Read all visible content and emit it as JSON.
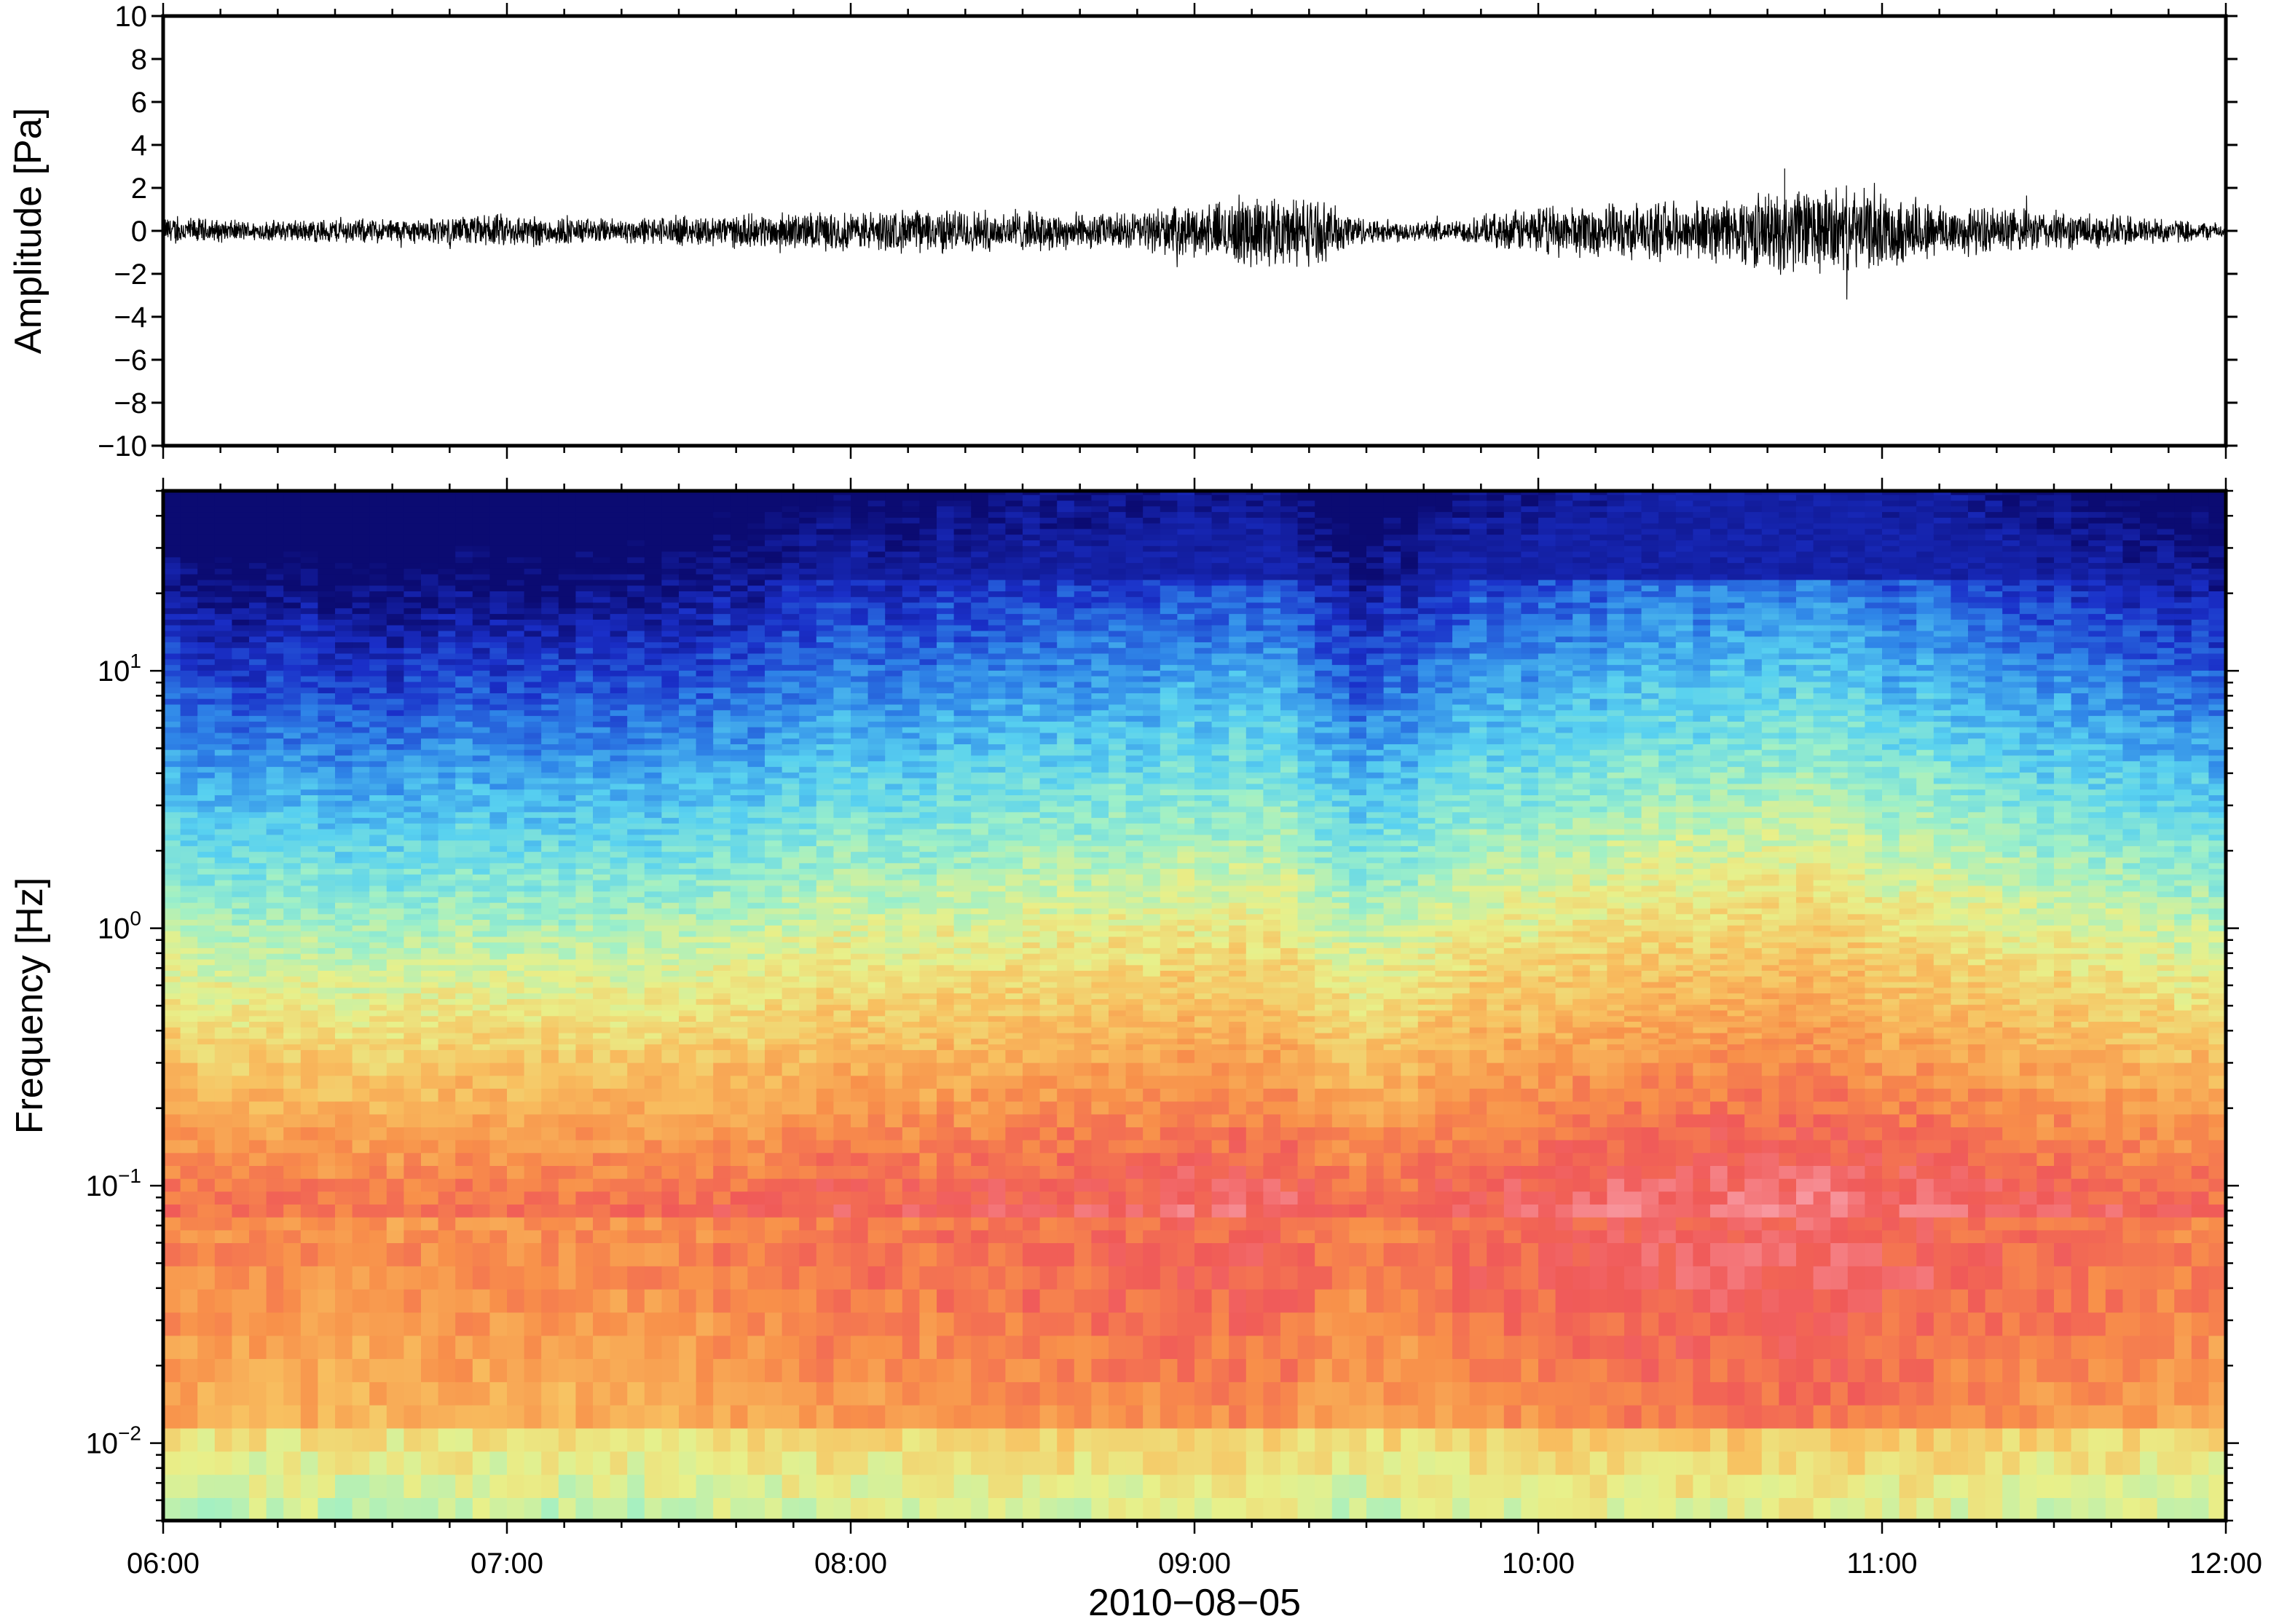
{
  "chart_data": [
    {
      "type": "line",
      "panel": "waveform",
      "ylabel": "Amplitude [Pa]",
      "ylim": [
        -10,
        10
      ],
      "yticks": [
        -10,
        -8,
        -6,
        -4,
        -2,
        0,
        2,
        4,
        6,
        8,
        10
      ],
      "ytick_labels": [
        "−10",
        "−8",
        "−6",
        "−4",
        "−2",
        "0",
        "2",
        "4",
        "6",
        "8",
        "10"
      ],
      "xlim": [
        "06:00",
        "12:00"
      ],
      "envelope": {
        "time": [
          "06:00",
          "06:15",
          "06:30",
          "06:45",
          "07:00",
          "07:15",
          "07:30",
          "07:45",
          "08:00",
          "08:15",
          "08:30",
          "08:45",
          "09:00",
          "09:10",
          "09:20",
          "09:30",
          "09:45",
          "10:00",
          "10:15",
          "10:30",
          "10:40",
          "10:50",
          "11:00",
          "11:15",
          "11:30",
          "11:45",
          "12:00"
        ],
        "amplitude": [
          0.6,
          0.4,
          0.5,
          0.5,
          0.7,
          0.5,
          0.6,
          0.7,
          0.8,
          0.9,
          0.8,
          0.7,
          1.0,
          1.5,
          1.4,
          0.5,
          0.4,
          1.0,
          1.1,
          1.2,
          1.6,
          1.8,
          1.5,
          1.0,
          0.8,
          0.6,
          0.3
        ]
      },
      "peak": {
        "time": "10:43",
        "amplitude": 2.9
      }
    },
    {
      "type": "heatmap",
      "panel": "spectrogram",
      "ylabel": "Frequency [Hz]",
      "xlabel": "2010−08−05",
      "yscale": "log",
      "ylim": [
        0.005,
        50
      ],
      "yticks": [
        0.01,
        0.1,
        1,
        10
      ],
      "ytick_labels": [
        {
          "base": "10",
          "exp": "−2"
        },
        {
          "base": "10",
          "exp": "−1"
        },
        {
          "base": "10",
          "exp": "0"
        },
        {
          "base": "10",
          "exp": "1"
        }
      ],
      "xticks": [
        "06:00",
        "07:00",
        "08:00",
        "09:00",
        "10:00",
        "11:00",
        "12:00"
      ],
      "colormap": "rainbow",
      "colors": [
        "#0b0b72",
        "#1a2fc8",
        "#2f86e8",
        "#58d1f0",
        "#9ef0c8",
        "#e8f08a",
        "#f8c060",
        "#f8904a",
        "#f05a58",
        "#f898a0"
      ],
      "intensity_profile": {
        "time": [
          "06:00",
          "06:30",
          "07:00",
          "07:30",
          "08:00",
          "08:30",
          "09:00",
          "09:15",
          "09:30",
          "09:45",
          "10:00",
          "10:30",
          "10:45",
          "11:00",
          "11:30",
          "12:00"
        ],
        "level": [
          0.35,
          0.3,
          0.32,
          0.38,
          0.55,
          0.6,
          0.72,
          0.75,
          0.35,
          0.65,
          0.7,
          0.85,
          0.9,
          0.82,
          0.62,
          0.45
        ]
      }
    }
  ]
}
